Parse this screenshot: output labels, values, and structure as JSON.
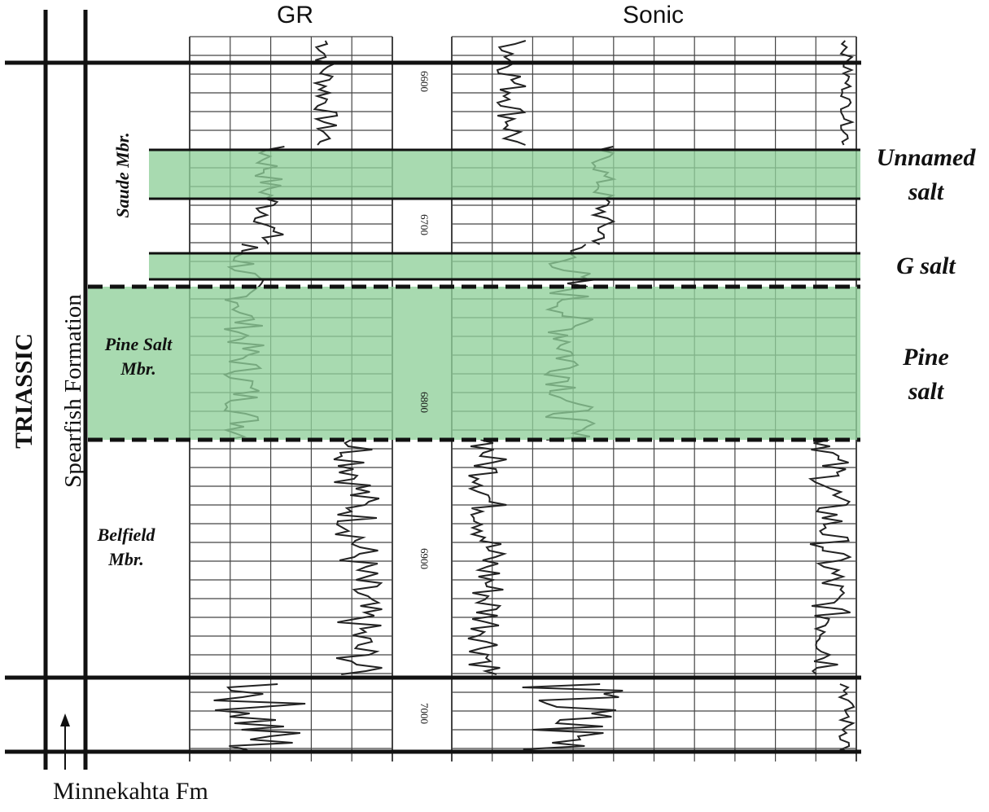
{
  "columns": {
    "gr_title": "GR",
    "sonic_title": "Sonic"
  },
  "stratigraphy": {
    "system": "TRIASSIC",
    "formation": "Spearfish Formation",
    "members": {
      "saude": "Saude  Mbr.",
      "pine": [
        "Pine Salt",
        "Mbr."
      ],
      "belfield": [
        "Belfield",
        "Mbr."
      ]
    },
    "below": "Minnekahta Fm"
  },
  "salt_units": {
    "unnamed": [
      "Unnamed",
      "salt"
    ],
    "g_salt": "G salt",
    "pine": [
      "Pine",
      "salt"
    ]
  },
  "depth_labels": [
    "6600",
    "6700",
    "6800",
    "6900",
    "7000"
  ],
  "colors": {
    "salt_fill": "#8fd09a",
    "line": "#111111",
    "grid": "#444444"
  }
}
